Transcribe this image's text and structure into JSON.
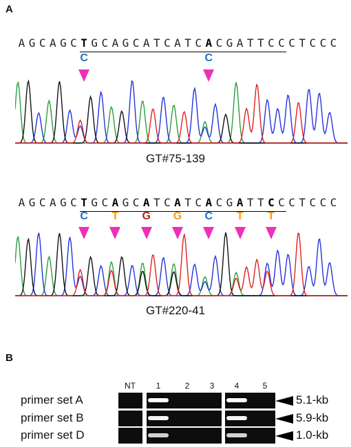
{
  "panel_a": {
    "label": "A",
    "sequence_top": [
      "A",
      "G",
      "C",
      "A",
      "G",
      "C",
      "T",
      "G",
      "C",
      "A",
      "G",
      "C",
      "A",
      "T",
      "C",
      "A",
      "T",
      "C",
      "A",
      "C",
      "G",
      "A",
      "T",
      "T",
      "C",
      "C",
      "C",
      "T",
      "C",
      "C",
      "C"
    ],
    "sequence_bottom": [
      "A",
      "G",
      "C",
      "A",
      "G",
      "C",
      "T",
      "G",
      "C",
      "A",
      "G",
      "C",
      "A",
      "T",
      "C",
      "A",
      "T",
      "C",
      "A",
      "C",
      "G",
      "A",
      "T",
      "T",
      "C",
      "C",
      "C",
      "T",
      "C",
      "C",
      "C"
    ],
    "sample_1": {
      "name": "GT#75-139",
      "bold_positions": [
        6,
        18
      ],
      "substitutions": [
        {
          "index": 6,
          "base": "C",
          "color": "#1f6fbf"
        },
        {
          "index": 18,
          "base": "C",
          "color": "#1f6fbf"
        }
      ]
    },
    "sample_2": {
      "name": "GT#220-41",
      "bold_positions": [
        6,
        9,
        12,
        15,
        18,
        21,
        24
      ],
      "substitutions": [
        {
          "index": 6,
          "base": "C",
          "color": "#1f6fbf"
        },
        {
          "index": 9,
          "base": "T",
          "color": "#f29a1f"
        },
        {
          "index": 12,
          "base": "G",
          "color": "#b3261e"
        },
        {
          "index": 15,
          "base": "G",
          "color": "#f29a1f"
        },
        {
          "index": 18,
          "base": "C",
          "color": "#1f6fbf"
        },
        {
          "index": 21,
          "base": "T",
          "color": "#f29a1f"
        },
        {
          "index": 24,
          "base": "T",
          "color": "#f29a1f"
        }
      ]
    },
    "trace_colors": {
      "A": "#2a9d3a",
      "C": "#2233dd",
      "G": "#111111",
      "T": "#e02020"
    },
    "arrow_color": "#ee2fb9"
  },
  "panel_b": {
    "label": "B",
    "lane_labels": [
      "NT",
      "1",
      "2",
      "3",
      "4",
      "5"
    ],
    "rows": [
      {
        "primer": "primer set A",
        "size": "5.1-kb",
        "bands": [
          false,
          true,
          false,
          false,
          true,
          false
        ],
        "brightness": 1.0
      },
      {
        "primer": "primer set B",
        "size": "5.9-kb",
        "bands": [
          false,
          true,
          false,
          false,
          true,
          false
        ],
        "brightness": 0.9
      },
      {
        "primer": "primer set D",
        "size": "1.0-kb",
        "bands": [
          false,
          true,
          false,
          false,
          true,
          false
        ],
        "brightness": 0.6
      }
    ]
  }
}
